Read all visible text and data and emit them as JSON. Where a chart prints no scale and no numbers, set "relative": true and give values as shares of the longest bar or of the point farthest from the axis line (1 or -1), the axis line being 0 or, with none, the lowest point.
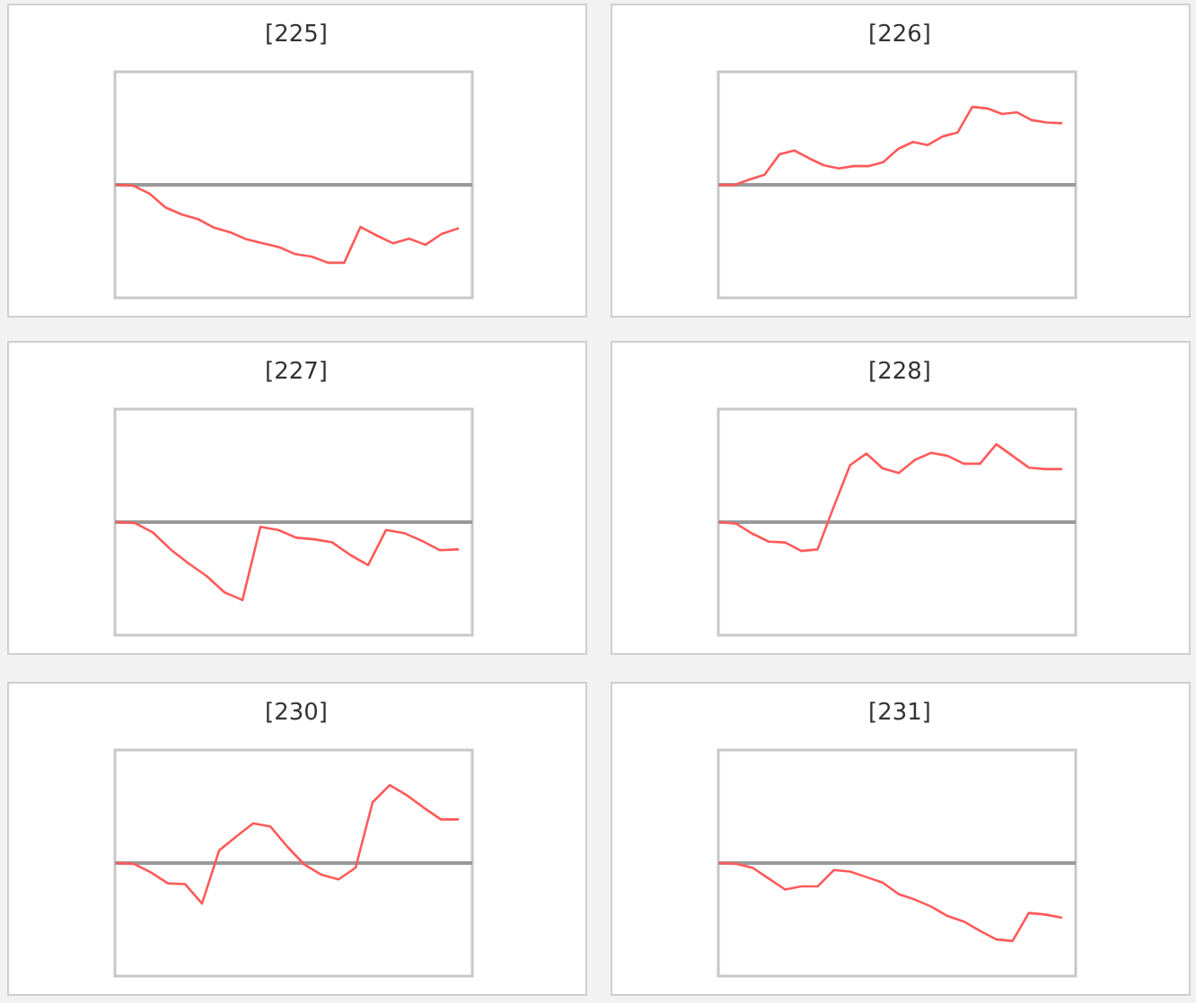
{
  "chart_data": [
    {
      "type": "line",
      "title": "[225]",
      "relative": true,
      "categories": [
        null,
        null,
        null,
        null,
        null,
        null,
        null,
        null,
        null,
        null,
        null,
        null,
        null,
        null,
        null,
        null,
        null,
        null,
        null,
        null,
        null,
        null
      ],
      "series": [
        {
          "color": "#ff5a5a",
          "values": [
            0,
            -0.01,
            -0.11,
            -0.29,
            -0.38,
            -0.44,
            -0.55,
            -0.61,
            -0.7,
            -0.75,
            -0.8,
            -0.89,
            -0.92,
            -1,
            -1,
            -0.54,
            -0.65,
            -0.75,
            -0.69,
            -0.77,
            -0.63,
            -0.56
          ]
        }
      ]
    },
    {
      "type": "line",
      "title": "[226]",
      "relative": true,
      "categories": [
        null,
        null,
        null,
        null,
        null,
        null,
        null,
        null,
        null,
        null,
        null,
        null,
        null,
        null,
        null,
        null,
        null,
        null,
        null,
        null,
        null,
        null,
        null,
        null
      ],
      "series": [
        {
          "color": "#ff5a5a",
          "values": [
            0,
            0,
            0.07,
            0.13,
            0.39,
            0.44,
            0.34,
            0.25,
            0.21,
            0.24,
            0.24,
            0.29,
            0.46,
            0.55,
            0.51,
            0.62,
            0.67,
            1,
            0.98,
            0.91,
            0.93,
            0.83,
            0.8,
            0.79
          ]
        }
      ]
    },
    {
      "type": "line",
      "title": "[227]",
      "relative": true,
      "categories": [
        null,
        null,
        null,
        null,
        null,
        null,
        null,
        null,
        null,
        null,
        null,
        null,
        null,
        null,
        null,
        null,
        null,
        null,
        null,
        null
      ],
      "series": [
        {
          "color": "#ff5a5a",
          "values": [
            0,
            -0.01,
            -0.13,
            -0.35,
            -0.53,
            -0.69,
            -0.9,
            -1,
            -0.06,
            -0.1,
            -0.2,
            -0.22,
            -0.26,
            -0.42,
            -0.55,
            -0.1,
            -0.14,
            -0.24,
            -0.36,
            -0.35
          ]
        }
      ]
    },
    {
      "type": "line",
      "title": "[228]",
      "relative": true,
      "categories": [
        null,
        null,
        null,
        null,
        null,
        null,
        null,
        null,
        null,
        null,
        null,
        null,
        null,
        null,
        null,
        null,
        null,
        null,
        null,
        null,
        null,
        null
      ],
      "series": [
        {
          "color": "#ff5a5a",
          "values": [
            0,
            -0.02,
            -0.15,
            -0.25,
            -0.26,
            -0.37,
            -0.35,
            0.2,
            0.73,
            0.88,
            0.69,
            0.63,
            0.8,
            0.89,
            0.85,
            0.75,
            0.75,
            1,
            0.85,
            0.7,
            0.68,
            0.68
          ]
        }
      ]
    },
    {
      "type": "line",
      "title": "[230]",
      "relative": true,
      "categories": [
        null,
        null,
        null,
        null,
        null,
        null,
        null,
        null,
        null,
        null,
        null,
        null,
        null,
        null,
        null,
        null,
        null,
        null,
        null,
        null,
        null
      ],
      "series": [
        {
          "color": "#ff5a5a",
          "values": [
            0,
            -0.01,
            -0.12,
            -0.26,
            -0.27,
            -0.52,
            0.16,
            0.34,
            0.51,
            0.47,
            0.21,
            -0.02,
            -0.15,
            -0.21,
            -0.06,
            0.78,
            1,
            0.87,
            0.71,
            0.56,
            0.56
          ]
        }
      ]
    },
    {
      "type": "line",
      "title": "[231]",
      "relative": true,
      "categories": [
        null,
        null,
        null,
        null,
        null,
        null,
        null,
        null,
        null,
        null,
        null,
        null,
        null,
        null,
        null,
        null,
        null,
        null,
        null,
        null,
        null,
        null
      ],
      "series": [
        {
          "color": "#ff5a5a",
          "values": [
            0,
            -0.01,
            -0.06,
            -0.2,
            -0.34,
            -0.3,
            -0.3,
            -0.09,
            -0.11,
            -0.18,
            -0.25,
            -0.4,
            -0.47,
            -0.56,
            -0.68,
            -0.75,
            -0.87,
            -0.98,
            -1,
            -0.64,
            -0.66,
            -0.7
          ]
        }
      ]
    }
  ]
}
